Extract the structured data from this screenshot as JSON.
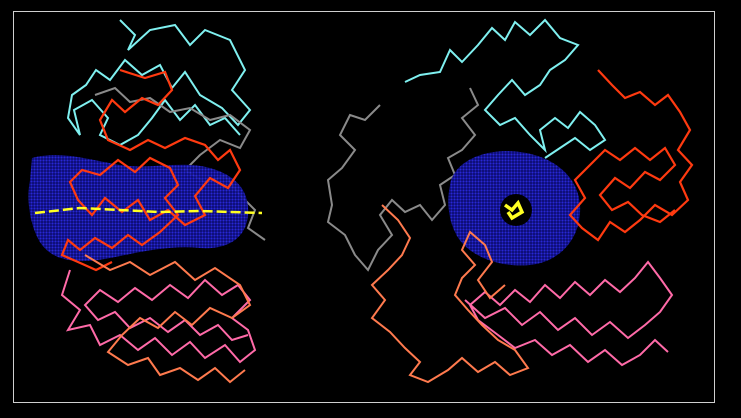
{
  "scene": {
    "background": "#000000",
    "frame_color": "#cfcfcf",
    "colors": {
      "cyan": "#7ff0f0",
      "red": "#ff3a10",
      "gray": "#808080",
      "blue": "#1a1acc",
      "yellow": "#ffff22",
      "pink": "#ff6aa8",
      "salmon": "#ff7a4e"
    }
  }
}
